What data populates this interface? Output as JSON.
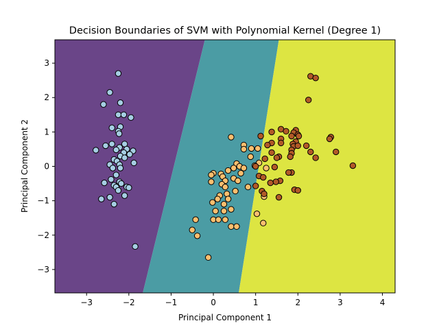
{
  "chart_data": {
    "type": "scatter",
    "title": "Decision Boundaries of SVM with Polynomial Kernel (Degree 1)",
    "xlabel": "Principal Component 1",
    "ylabel": "Principal Component 2",
    "xlim": [
      -3.75,
      4.3
    ],
    "ylim": [
      -3.68,
      3.68
    ],
    "xticks": [
      -3,
      -2,
      -1,
      0,
      1,
      2,
      3,
      4
    ],
    "yticks": [
      -3,
      -2,
      -1,
      0,
      1,
      2,
      3
    ],
    "grid": false,
    "legend": "none",
    "regions": [
      {
        "class": 0,
        "color": "#6a4588",
        "polygon": [
          [
            -3.75,
            -3.68
          ],
          [
            -1.67,
            -3.68
          ],
          [
            -0.2,
            3.68
          ],
          [
            -3.75,
            3.68
          ]
        ]
      },
      {
        "class": 1,
        "color": "#4b9ca4",
        "polygon": [
          [
            -1.67,
            -3.68
          ],
          [
            0.6,
            -3.68
          ],
          [
            1.55,
            3.68
          ],
          [
            -0.2,
            3.68
          ]
        ]
      },
      {
        "class": 2,
        "color": "#dde542",
        "polygon": [
          [
            0.6,
            -3.68
          ],
          [
            4.3,
            -3.68
          ],
          [
            4.3,
            3.68
          ],
          [
            1.55,
            3.68
          ]
        ]
      }
    ],
    "series": [
      {
        "class": 0,
        "color": "#a6cee3",
        "points": [
          [
            -2.25,
            2.7
          ],
          [
            -2.45,
            2.15
          ],
          [
            -2.2,
            1.85
          ],
          [
            -2.6,
            1.8
          ],
          [
            -2.25,
            1.5
          ],
          [
            -2.12,
            1.5
          ],
          [
            -1.95,
            1.42
          ],
          [
            -2.4,
            1.12
          ],
          [
            -2.2,
            1.15
          ],
          [
            -2.25,
            1.02
          ],
          [
            -2.23,
            0.95
          ],
          [
            -2.1,
            0.65
          ],
          [
            -2.4,
            0.65
          ],
          [
            -2.55,
            0.6
          ],
          [
            -2.22,
            0.55
          ],
          [
            -2.3,
            0.48
          ],
          [
            -2.05,
            0.5
          ],
          [
            -1.9,
            0.45
          ],
          [
            -2.78,
            0.47
          ],
          [
            -2.12,
            0.4
          ],
          [
            -1.98,
            0.35
          ],
          [
            -2.2,
            0.3
          ],
          [
            -2.1,
            0.25
          ],
          [
            -2.35,
            0.2
          ],
          [
            -2.28,
            0.15
          ],
          [
            -2.45,
            0.05
          ],
          [
            -2.22,
            0.05
          ],
          [
            -1.88,
            0.1
          ],
          [
            -2.38,
            -0.05
          ],
          [
            -2.2,
            -0.05
          ],
          [
            -2.3,
            -0.25
          ],
          [
            -2.42,
            -0.38
          ],
          [
            -2.58,
            -0.48
          ],
          [
            -2.22,
            -0.45
          ],
          [
            -2.35,
            -0.55
          ],
          [
            -2.18,
            -0.5
          ],
          [
            -2.3,
            -0.6
          ],
          [
            -2.05,
            -0.6
          ],
          [
            -2.25,
            -0.7
          ],
          [
            -2.0,
            -0.62
          ],
          [
            -2.45,
            -0.9
          ],
          [
            -2.65,
            -0.95
          ],
          [
            -2.35,
            -1.1
          ],
          [
            -2.1,
            -0.85
          ],
          [
            -1.85,
            -2.33
          ]
        ]
      },
      {
        "class": 1,
        "color": "#fdbf6f",
        "points": [
          [
            0.42,
            0.85
          ],
          [
            0.72,
            0.62
          ],
          [
            0.72,
            0.5
          ],
          [
            0.9,
            0.52
          ],
          [
            1.05,
            0.52
          ],
          [
            0.88,
            0.28
          ],
          [
            1.08,
            0.1
          ],
          [
            0.98,
            0.02
          ],
          [
            0.55,
            0.08
          ],
          [
            0.62,
            0.0
          ],
          [
            0.48,
            -0.05
          ],
          [
            0.72,
            -0.05
          ],
          [
            0.65,
            -0.2
          ],
          [
            0.35,
            -0.12
          ],
          [
            0.18,
            -0.22
          ],
          [
            0.0,
            -0.2
          ],
          [
            -0.05,
            -0.25
          ],
          [
            0.22,
            -0.3
          ],
          [
            0.48,
            -0.35
          ],
          [
            0.28,
            -0.42
          ],
          [
            0.58,
            -0.42
          ],
          [
            -0.05,
            -0.45
          ],
          [
            0.2,
            -0.52
          ],
          [
            0.82,
            -0.6
          ],
          [
            0.52,
            -0.72
          ],
          [
            0.28,
            -0.6
          ],
          [
            0.32,
            -0.8
          ],
          [
            0.15,
            -0.85
          ],
          [
            0.1,
            -0.95
          ],
          [
            0.35,
            -0.95
          ],
          [
            -0.02,
            -1.05
          ],
          [
            0.25,
            -1.1
          ],
          [
            0.05,
            -1.3
          ],
          [
            0.25,
            -1.3
          ],
          [
            0.42,
            -1.25
          ],
          [
            0.28,
            -1.55
          ],
          [
            0.0,
            -1.55
          ],
          [
            0.12,
            -1.55
          ],
          [
            -0.42,
            -1.55
          ],
          [
            0.42,
            -1.75
          ],
          [
            0.55,
            -1.75
          ],
          [
            -0.5,
            -1.85
          ],
          [
            -0.38,
            -2.02
          ],
          [
            -0.12,
            -2.65
          ],
          [
            1.03,
            -1.38
          ],
          [
            1.18,
            -1.65
          ],
          [
            1.25,
            -0.05
          ],
          [
            1.2,
            -0.88
          ]
        ]
      },
      {
        "class": 2,
        "color": "#b15928",
        "points": [
          [
            2.3,
            2.62
          ],
          [
            2.42,
            2.57
          ],
          [
            2.25,
            1.93
          ],
          [
            1.6,
            1.08
          ],
          [
            1.72,
            1.02
          ],
          [
            1.95,
            1.05
          ],
          [
            1.9,
            0.98
          ],
          [
            2.0,
            0.92
          ],
          [
            1.38,
            1.0
          ],
          [
            1.12,
            0.88
          ],
          [
            1.85,
            0.88
          ],
          [
            2.02,
            0.88
          ],
          [
            2.78,
            0.85
          ],
          [
            2.75,
            0.8
          ],
          [
            1.6,
            0.8
          ],
          [
            1.95,
            0.72
          ],
          [
            1.88,
            0.65
          ],
          [
            1.38,
            0.68
          ],
          [
            1.6,
            0.68
          ],
          [
            1.9,
            0.58
          ],
          [
            2.2,
            0.6
          ],
          [
            2.0,
            0.6
          ],
          [
            1.28,
            0.62
          ],
          [
            1.85,
            0.48
          ],
          [
            1.38,
            0.4
          ],
          [
            1.85,
            0.38
          ],
          [
            2.3,
            0.42
          ],
          [
            2.9,
            0.42
          ],
          [
            1.55,
            0.28
          ],
          [
            1.5,
            0.25
          ],
          [
            1.82,
            0.28
          ],
          [
            2.42,
            0.25
          ],
          [
            1.22,
            0.22
          ],
          [
            1.0,
            0.0
          ],
          [
            1.45,
            -0.02
          ],
          [
            3.3,
            0.02
          ],
          [
            1.85,
            -0.18
          ],
          [
            1.78,
            -0.18
          ],
          [
            1.08,
            -0.28
          ],
          [
            1.18,
            -0.32
          ],
          [
            1.58,
            -0.42
          ],
          [
            1.48,
            -0.45
          ],
          [
            1.35,
            -0.48
          ],
          [
            1.0,
            -0.57
          ],
          [
            1.15,
            -0.72
          ],
          [
            1.92,
            -0.68
          ],
          [
            2.0,
            -0.7
          ],
          [
            1.2,
            -0.8
          ],
          [
            1.55,
            -0.9
          ]
        ]
      }
    ]
  }
}
